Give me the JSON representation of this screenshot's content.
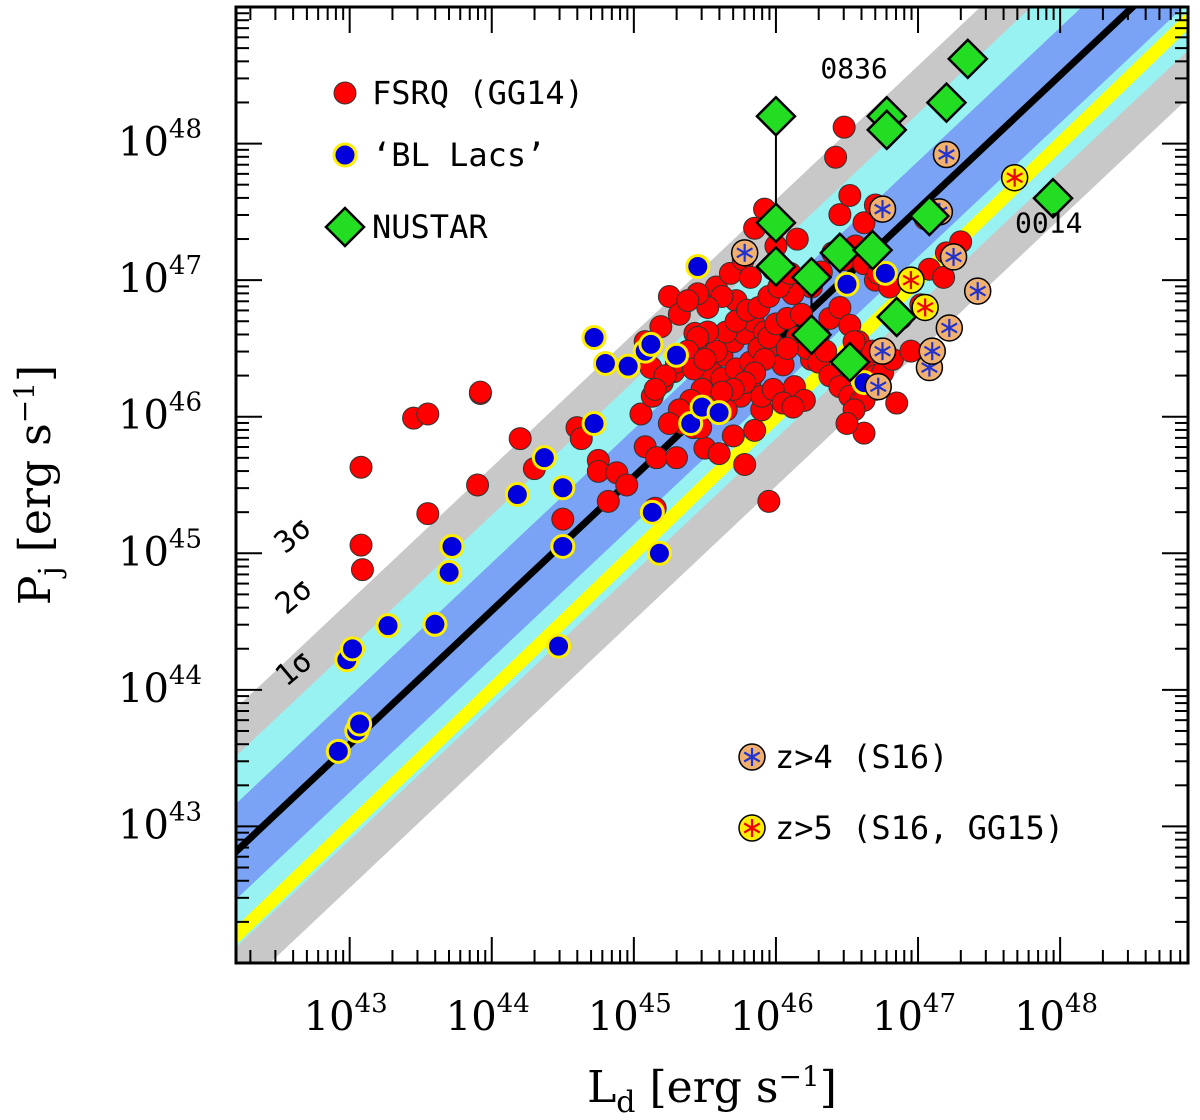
{
  "chart_data": {
    "type": "scatter",
    "title": "",
    "xlabel": "L",
    "xlabel_sub": "d",
    "xlabel_units": " [erg s",
    "xlabel_units_exp": "−1",
    "xlabel_units_close": "]",
    "ylabel": "P",
    "ylabel_sub": "j",
    "ylabel_units": " [erg s",
    "ylabel_units_exp": "−1",
    "ylabel_units_close": "]",
    "xscale": "log",
    "yscale": "log",
    "xlim_log10": [
      42.2,
      48.9
    ],
    "ylim_log10": [
      42.0,
      49.0
    ],
    "x_ticks": [
      {
        "base": "10",
        "exp": "43",
        "value": 43
      },
      {
        "base": "10",
        "exp": "44",
        "value": 44
      },
      {
        "base": "10",
        "exp": "45",
        "value": 45
      },
      {
        "base": "10",
        "exp": "46",
        "value": 46
      },
      {
        "base": "10",
        "exp": "47",
        "value": 47
      },
      {
        "base": "10",
        "exp": "48",
        "value": 48
      }
    ],
    "y_ticks": [
      {
        "base": "10",
        "exp": "43",
        "value": 43
      },
      {
        "base": "10",
        "exp": "44",
        "value": 44
      },
      {
        "base": "10",
        "exp": "45",
        "value": 45
      },
      {
        "base": "10",
        "exp": "46",
        "value": 46
      },
      {
        "base": "10",
        "exp": "47",
        "value": 47
      },
      {
        "base": "10",
        "exp": "48",
        "value": 48
      }
    ],
    "fit": {
      "slope": 0.98,
      "intercept_at_x43": 43.6,
      "label": "best fit"
    },
    "bands": [
      {
        "label": "3σ",
        "halfwidth_dex": 1.05,
        "color": "#c8c8c8"
      },
      {
        "label": "2σ",
        "halfwidth_dex": 0.7,
        "color": "#99f2f2"
      },
      {
        "label": "1σ",
        "halfwidth_dex": 0.35,
        "color": "#7aa3f5"
      }
    ],
    "equality_line": {
      "label": "Pj = Ld",
      "color": "#ffff00"
    },
    "annotations": [
      {
        "text": "0836",
        "x": 46.55,
        "y": 48.48
      },
      {
        "text": "0014",
        "x": 47.92,
        "y": 47.35
      }
    ],
    "legend_top": [
      {
        "label": "FSRQ (GG14)",
        "marker": "fsrq"
      },
      {
        "label": "‘BL Lacs’",
        "marker": "bllac"
      },
      {
        "label": "NUSTAR",
        "marker": "nustar"
      }
    ],
    "legend_bottom": [
      {
        "label": "z>4 (S16)",
        "marker": "z4"
      },
      {
        "label": "z>5 (S16, GG15)",
        "marker": "z5"
      }
    ],
    "series": [
      {
        "name": "FSRQ (GG14)",
        "marker": "fsrq",
        "points": [
          [
            43.09,
            44.88
          ],
          [
            43.08,
            45.06
          ],
          [
            43.55,
            45.29
          ],
          [
            43.9,
            45.5
          ],
          [
            43.08,
            45.63
          ],
          [
            43.92,
            46.17
          ],
          [
            43.45,
            45.99
          ],
          [
            43.55,
            46.02
          ],
          [
            43.92,
            46.18
          ],
          [
            44.2,
            45.84
          ],
          [
            44.3,
            45.62
          ],
          [
            44.6,
            45.92
          ],
          [
            44.75,
            45.68
          ],
          [
            44.5,
            45.25
          ],
          [
            44.63,
            45.84
          ],
          [
            44.75,
            45.6
          ],
          [
            44.82,
            45.38
          ],
          [
            44.88,
            45.59
          ],
          [
            44.95,
            45.5
          ],
          [
            45.08,
            45.78
          ],
          [
            45.16,
            45.7
          ],
          [
            45.05,
            46.02
          ],
          [
            45.13,
            46.15
          ],
          [
            45.2,
            46.25
          ],
          [
            45.28,
            46.33
          ],
          [
            45.35,
            45.95
          ],
          [
            45.42,
            45.92
          ],
          [
            45.5,
            45.77
          ],
          [
            45.6,
            45.73
          ],
          [
            45.7,
            45.86
          ],
          [
            45.78,
            45.65
          ],
          [
            45.85,
            45.9
          ],
          [
            45.9,
            46.05
          ],
          [
            45.95,
            45.38
          ],
          [
            45.3,
            45.7
          ],
          [
            45.15,
            45.33
          ],
          [
            45.47,
            45.92
          ],
          [
            45.58,
            46.07
          ],
          [
            45.65,
            46.2
          ],
          [
            45.12,
            46.36
          ],
          [
            45.08,
            46.55
          ],
          [
            45.19,
            46.66
          ],
          [
            45.25,
            46.88
          ],
          [
            45.32,
            46.75
          ],
          [
            45.43,
            46.61
          ],
          [
            45.5,
            46.52
          ],
          [
            45.62,
            46.45
          ],
          [
            45.7,
            46.55
          ],
          [
            45.78,
            46.61
          ],
          [
            45.84,
            46.7
          ],
          [
            45.92,
            46.62
          ],
          [
            45.98,
            46.53
          ],
          [
            46.05,
            46.38
          ],
          [
            46.13,
            46.22
          ],
          [
            46.2,
            46.12
          ],
          [
            45.55,
            46.32
          ],
          [
            45.62,
            46.28
          ],
          [
            45.72,
            46.35
          ],
          [
            45.82,
            46.27
          ],
          [
            45.9,
            46.15
          ],
          [
            45.98,
            46.2
          ],
          [
            46.05,
            46.1
          ],
          [
            46.12,
            46.07
          ],
          [
            46.25,
            46.42
          ],
          [
            46.3,
            46.6
          ],
          [
            46.38,
            46.72
          ],
          [
            46.45,
            46.8
          ],
          [
            46.52,
            46.67
          ],
          [
            46.58,
            46.55
          ],
          [
            46.62,
            46.4
          ],
          [
            46.7,
            46.3
          ],
          [
            46.25,
            46.95
          ],
          [
            46.32,
            47.06
          ],
          [
            46.4,
            47.2
          ],
          [
            46.48,
            47.15
          ],
          [
            46.56,
            47.25
          ],
          [
            46.62,
            47.12
          ],
          [
            46.7,
            47.0
          ],
          [
            46.45,
            47.48
          ],
          [
            46.52,
            47.62
          ],
          [
            46.42,
            47.9
          ],
          [
            46.48,
            48.12
          ],
          [
            46.62,
            47.42
          ],
          [
            46.7,
            47.55
          ],
          [
            45.85,
            47.38
          ],
          [
            45.92,
            47.52
          ],
          [
            45.58,
            46.95
          ],
          [
            45.68,
            47.05
          ],
          [
            45.77,
            47.15
          ],
          [
            45.82,
            47.02
          ],
          [
            45.72,
            46.85
          ],
          [
            45.62,
            46.88
          ],
          [
            45.52,
            46.8
          ],
          [
            45.45,
            46.9
          ],
          [
            45.38,
            46.85
          ],
          [
            45.82,
            46.4
          ],
          [
            45.88,
            46.5
          ],
          [
            45.95,
            46.58
          ],
          [
            46.0,
            46.68
          ],
          [
            46.08,
            46.72
          ],
          [
            46.15,
            46.58
          ],
          [
            46.22,
            46.5
          ],
          [
            46.3,
            46.4
          ],
          [
            46.38,
            46.3
          ],
          [
            46.45,
            46.22
          ],
          [
            46.52,
            46.15
          ],
          [
            46.6,
            46.12
          ],
          [
            45.75,
            46.15
          ],
          [
            45.65,
            46.05
          ],
          [
            45.55,
            46.15
          ],
          [
            45.48,
            46.2
          ],
          [
            45.4,
            46.12
          ],
          [
            45.32,
            46.05
          ],
          [
            45.25,
            45.95
          ],
          [
            46.7,
            46.2
          ],
          [
            46.62,
            46.12
          ],
          [
            46.55,
            46.05
          ],
          [
            46.75,
            46.32
          ],
          [
            46.82,
            46.42
          ],
          [
            46.68,
            46.48
          ],
          [
            46.55,
            46.55
          ],
          [
            46.35,
            46.48
          ],
          [
            46.25,
            46.62
          ],
          [
            46.18,
            46.75
          ],
          [
            46.12,
            46.9
          ],
          [
            46.05,
            47.0
          ],
          [
            45.98,
            47.08
          ],
          [
            46.08,
            46.5
          ],
          [
            45.92,
            46.42
          ],
          [
            45.85,
            46.32
          ],
          [
            45.78,
            46.25
          ],
          [
            45.7,
            46.2
          ],
          [
            45.62,
            46.18
          ],
          [
            45.58,
            46.48
          ],
          [
            45.65,
            46.62
          ],
          [
            45.72,
            46.7
          ],
          [
            45.8,
            46.78
          ],
          [
            45.88,
            46.8
          ],
          [
            45.95,
            46.88
          ],
          [
            46.02,
            46.95
          ],
          [
            46.1,
            47.05
          ],
          [
            45.52,
            46.62
          ],
          [
            45.45,
            46.58
          ],
          [
            45.38,
            46.48
          ],
          [
            45.3,
            46.4
          ],
          [
            45.22,
            46.3
          ],
          [
            45.15,
            46.2
          ],
          [
            45.42,
            46.35
          ],
          [
            45.5,
            46.42
          ],
          [
            46.85,
            46.1
          ],
          [
            46.72,
            47.05
          ],
          [
            46.8,
            46.95
          ],
          [
            46.88,
            46.72
          ],
          [
            46.95,
            46.48
          ],
          [
            47.02,
            46.82
          ],
          [
            47.08,
            47.08
          ],
          [
            47.2,
            47.2
          ],
          [
            47.3,
            47.28
          ],
          [
            47.05,
            47.45
          ],
          [
            47.18,
            47.02
          ],
          [
            46.62,
            45.88
          ],
          [
            46.5,
            45.95
          ],
          [
            46.0,
            47.25
          ],
          [
            46.15,
            47.3
          ]
        ]
      },
      {
        "name": "‘BL Lacs’",
        "marker": "bllac",
        "points": [
          [
            42.92,
            43.55
          ],
          [
            43.05,
            43.7
          ],
          [
            43.07,
            43.75
          ],
          [
            42.98,
            44.22
          ],
          [
            43.02,
            44.3
          ],
          [
            43.27,
            44.47
          ],
          [
            43.6,
            44.48
          ],
          [
            43.7,
            44.86
          ],
          [
            43.72,
            45.05
          ],
          [
            44.18,
            45.43
          ],
          [
            44.37,
            45.7
          ],
          [
            44.5,
            45.48
          ],
          [
            44.5,
            45.05
          ],
          [
            44.72,
            45.95
          ],
          [
            44.72,
            46.58
          ],
          [
            44.8,
            46.39
          ],
          [
            44.96,
            46.37
          ],
          [
            45.08,
            46.48
          ],
          [
            45.12,
            46.53
          ],
          [
            45.3,
            46.45
          ],
          [
            45.4,
            45.95
          ],
          [
            45.48,
            46.07
          ],
          [
            45.13,
            45.3
          ],
          [
            45.18,
            45.0
          ],
          [
            44.47,
            44.32
          ],
          [
            45.45,
            47.1
          ],
          [
            46.5,
            46.97
          ],
          [
            46.62,
            46.25
          ],
          [
            45.6,
            46.03
          ],
          [
            46.77,
            47.05
          ]
        ]
      },
      {
        "name": "NUSTAR",
        "marker": "nustar",
        "points": [
          [
            46.0,
            47.1
          ],
          [
            46.0,
            47.42
          ],
          [
            46.0,
            48.2
          ],
          [
            46.25,
            47.02
          ],
          [
            46.25,
            46.6
          ],
          [
            46.45,
            47.2
          ],
          [
            46.52,
            46.4
          ],
          [
            46.68,
            47.22
          ],
          [
            46.78,
            48.2
          ],
          [
            46.78,
            48.1
          ],
          [
            46.85,
            46.73
          ],
          [
            47.08,
            47.47
          ],
          [
            47.2,
            48.3
          ],
          [
            47.35,
            48.62
          ],
          [
            47.95,
            47.6
          ]
        ],
        "error_bars": [
          {
            "x": 46.0,
            "y_low": 47.1,
            "y_high": 48.2
          },
          {
            "x": 46.25,
            "y_low": 46.6,
            "y_high": 47.05
          },
          {
            "x": 46.78,
            "y_low": 48.0,
            "y_high": 48.3
          }
        ]
      },
      {
        "name": "z>4 (S16)",
        "marker": "z4",
        "points": [
          [
            45.78,
            47.2
          ],
          [
            46.75,
            47.52
          ],
          [
            47.2,
            47.92
          ],
          [
            47.15,
            47.5
          ],
          [
            47.25,
            47.17
          ],
          [
            47.42,
            46.92
          ],
          [
            46.75,
            46.48
          ],
          [
            47.08,
            46.36
          ],
          [
            46.72,
            46.22
          ],
          [
            47.1,
            46.48
          ],
          [
            47.22,
            46.65
          ]
        ]
      },
      {
        "name": "z>5 (S16, GG15)",
        "marker": "z5",
        "points": [
          [
            46.95,
            47.0
          ],
          [
            47.05,
            46.8
          ],
          [
            47.68,
            47.75
          ]
        ]
      }
    ]
  }
}
